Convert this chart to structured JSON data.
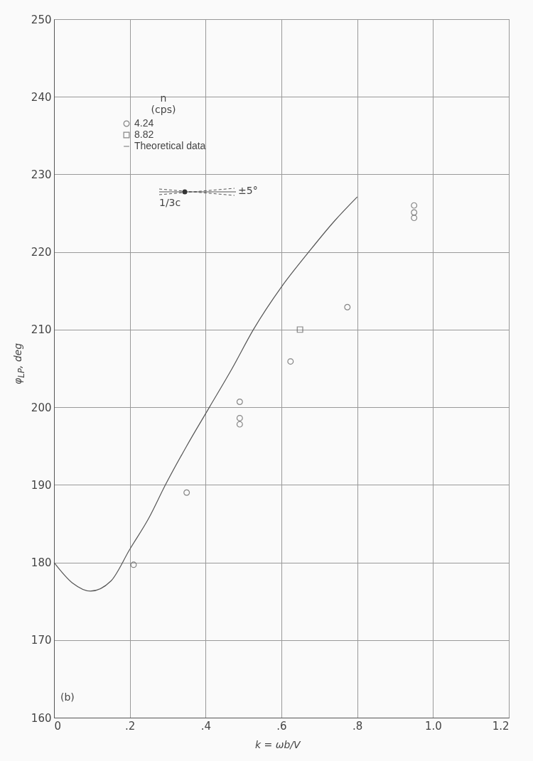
{
  "chart_data": {
    "type": "scatter",
    "xlabel": "k = ωb/V",
    "ylabel": "φ$_{LP}$, deg",
    "legend_title": "n (cps)",
    "series": [
      {
        "name": "4.24",
        "marker": "circle",
        "color": "#555555",
        "x": [
          0.21,
          0.35,
          0.49,
          0.49,
          0.49,
          0.624,
          0.774,
          0.95,
          0.95,
          0.95
        ],
        "values": [
          179.7,
          189.0,
          200.7,
          198.6,
          197.8,
          205.9,
          212.9,
          226.0,
          225.1,
          224.4
        ]
      },
      {
        "name": "8.82",
        "marker": "square",
        "color": "#555555",
        "x": [
          0.649
        ],
        "values": [
          210.0
        ]
      },
      {
        "name": "Theoretical data",
        "type": "line",
        "marker": "none",
        "color": "#555555",
        "x": [
          0,
          0.05,
          0.096,
          0.15,
          0.2,
          0.25,
          0.294,
          0.35,
          0.41,
          0.47,
          0.526,
          0.6,
          0.672,
          0.74,
          0.8
        ],
        "values": [
          180,
          177.3,
          176.3,
          177.6,
          181.7,
          185.7,
          190,
          195,
          200,
          205,
          210,
          215.5,
          220,
          224,
          227.1
        ]
      }
    ],
    "xlim": [
      0,
      1.2
    ],
    "xticks": [
      {
        "value": 0,
        "label": "0"
      },
      {
        "value": 0.2,
        "label": ".2"
      },
      {
        "value": 0.4,
        "label": ".4"
      },
      {
        "value": 0.6,
        "label": ".6"
      },
      {
        "value": 0.8,
        "label": ".8"
      },
      {
        "value": 1.0,
        "label": "1.0"
      },
      {
        "value": 1.2,
        "label": "1.2"
      }
    ],
    "ylim": [
      160,
      250
    ],
    "yticks": [
      160,
      170,
      180,
      190,
      200,
      210,
      220,
      230,
      240,
      250
    ],
    "grid": true,
    "legend": "top left",
    "annotations": [
      "(b)",
      "1/3c",
      "±5°"
    ]
  }
}
